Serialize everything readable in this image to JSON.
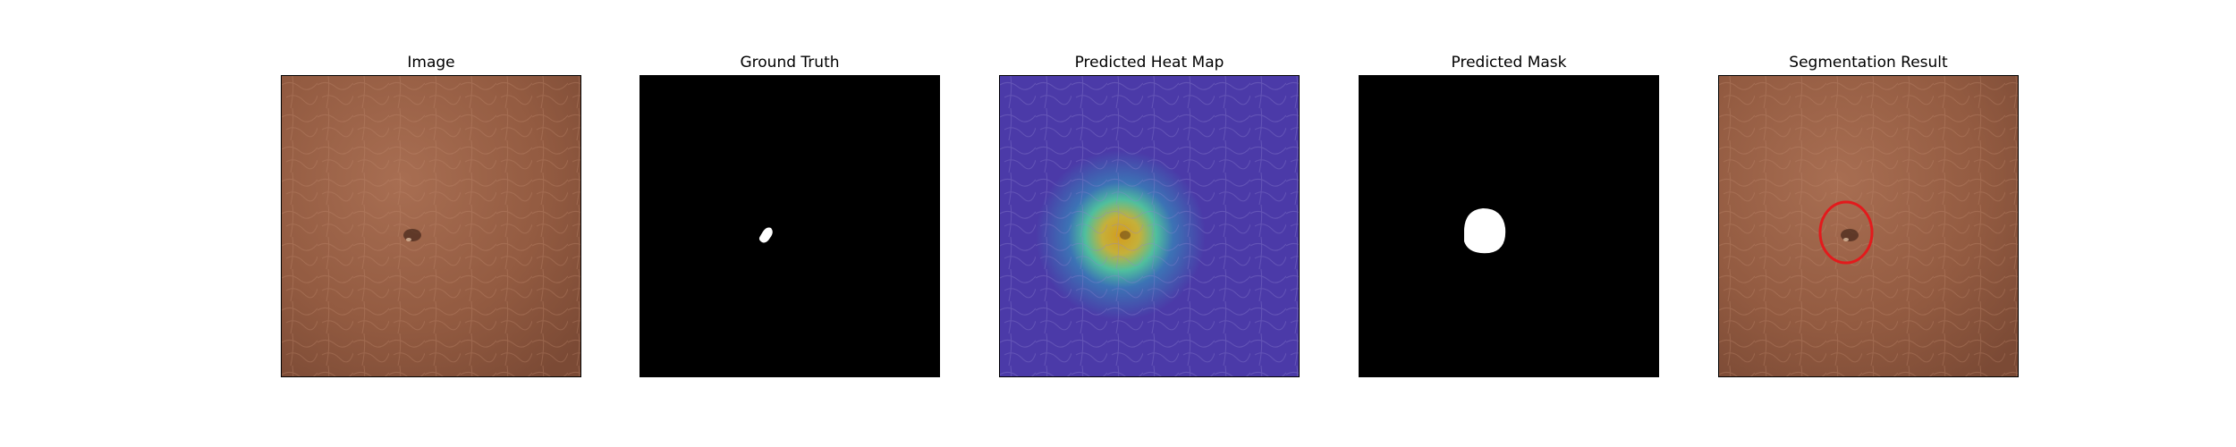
{
  "figure": {
    "panels": [
      {
        "title": "Image"
      },
      {
        "title": "Ground Truth"
      },
      {
        "title": "Predicted Heat Map"
      },
      {
        "title": "Predicted Mask"
      },
      {
        "title": "Segmentation Result"
      }
    ]
  },
  "colors": {
    "leather": "#9a6248",
    "leather_dark": "#6f4330",
    "background_black": "#000000",
    "mask_white": "#ffffff",
    "heat_low": "#4b3aa8",
    "heat_mid": "#36b6a0",
    "heat_high": "#f2a21b",
    "result_circle": "#e31a1c"
  }
}
